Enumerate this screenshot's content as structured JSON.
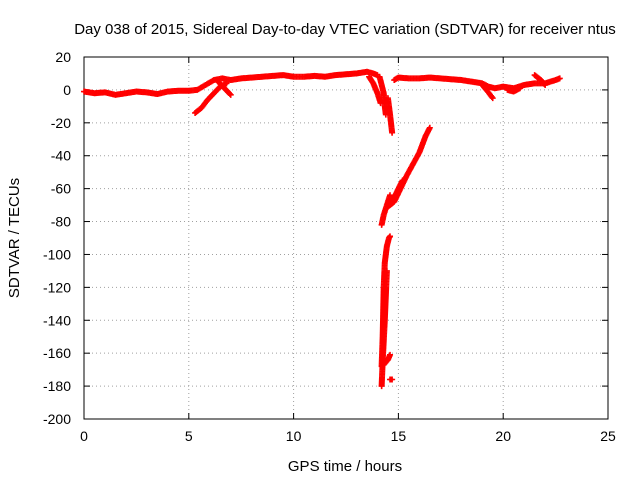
{
  "chart_data": {
    "type": "scatter",
    "title": "Day 038 of 2015, Sidereal Day-to-day VTEC variation (SDTVAR) for receiver ntus",
    "xlabel": "GPS time / hours",
    "ylabel": "SDTVAR / TECUs",
    "xlim": [
      0,
      25
    ],
    "ylim": [
      -200,
      20
    ],
    "xticks": [
      0,
      5,
      10,
      15,
      20,
      25
    ],
    "yticks": [
      -200,
      -180,
      -160,
      -140,
      -120,
      -100,
      -80,
      -60,
      -40,
      -20,
      0,
      20
    ],
    "grid": true,
    "marker": "+",
    "color": "#ff0000",
    "series": [
      {
        "name": "ntus",
        "segments": [
          [
            [
              0.0,
              -1
            ],
            [
              0.5,
              -2
            ],
            [
              1.0,
              -1.5
            ],
            [
              1.5,
              -3
            ],
            [
              2.0,
              -2
            ],
            [
              2.5,
              -1
            ],
            [
              3.0,
              -1.5
            ],
            [
              3.5,
              -2.5
            ],
            [
              4.0,
              -1
            ],
            [
              4.5,
              -0.5
            ],
            [
              5.0,
              -0.5
            ],
            [
              5.4,
              0
            ],
            [
              5.8,
              3
            ],
            [
              6.2,
              6
            ],
            [
              6.6,
              7
            ],
            [
              7.0,
              6
            ],
            [
              7.5,
              7
            ],
            [
              8.0,
              7.5
            ],
            [
              8.5,
              8
            ],
            [
              9.0,
              8.5
            ],
            [
              9.5,
              9
            ],
            [
              10.0,
              8
            ],
            [
              10.5,
              8
            ],
            [
              11.0,
              8.5
            ],
            [
              11.5,
              8
            ],
            [
              12.0,
              9
            ],
            [
              12.5,
              9.5
            ],
            [
              13.0,
              10
            ],
            [
              13.5,
              11
            ],
            [
              13.8,
              10
            ],
            [
              14.0,
              9
            ]
          ],
          [
            [
              5.3,
              -14
            ],
            [
              5.6,
              -11
            ],
            [
              5.9,
              -6
            ],
            [
              6.2,
              -2
            ],
            [
              6.5,
              2
            ],
            [
              6.8,
              4
            ]
          ],
          [
            [
              6.4,
              5
            ],
            [
              6.7,
              1
            ],
            [
              7.0,
              -3
            ]
          ],
          [
            [
              13.6,
              8
            ],
            [
              13.8,
              4
            ],
            [
              14.0,
              -2
            ],
            [
              14.15,
              -8
            ]
          ],
          [
            [
              14.1,
              8
            ],
            [
              14.2,
              3
            ],
            [
              14.3,
              -2
            ],
            [
              14.35,
              -10
            ],
            [
              14.4,
              -15
            ]
          ],
          [
            [
              14.8,
              6
            ],
            [
              15.0,
              7.5
            ],
            [
              15.5,
              7
            ],
            [
              16.0,
              7
            ],
            [
              16.5,
              7.5
            ],
            [
              17.0,
              7
            ],
            [
              17.5,
              6.5
            ],
            [
              18.0,
              6
            ],
            [
              18.5,
              5
            ],
            [
              19.0,
              4
            ],
            [
              19.3,
              2
            ],
            [
              19.6,
              1
            ],
            [
              20.0,
              2
            ],
            [
              20.5,
              1
            ],
            [
              21.0,
              3
            ],
            [
              21.5,
              4
            ],
            [
              22.0,
              4
            ],
            [
              22.5,
              6
            ],
            [
              22.7,
              7
            ]
          ],
          [
            [
              19.0,
              3
            ],
            [
              19.2,
              0
            ],
            [
              19.5,
              -5
            ]
          ],
          [
            [
              20.2,
              0
            ],
            [
              20.5,
              -1
            ],
            [
              20.8,
              1
            ]
          ],
          [
            [
              21.5,
              9
            ],
            [
              21.8,
              6
            ],
            [
              22.0,
              3
            ]
          ],
          [
            [
              14.5,
              -5
            ],
            [
              14.6,
              -15
            ],
            [
              14.7,
              -26
            ]
          ],
          [
            [
              14.2,
              -82
            ],
            [
              14.3,
              -76
            ],
            [
              14.45,
              -70
            ],
            [
              14.6,
              -64
            ]
          ],
          [
            [
              14.2,
              -168
            ],
            [
              14.25,
              -150
            ],
            [
              14.3,
              -120
            ],
            [
              14.35,
              -105
            ],
            [
              14.45,
              -95
            ],
            [
              14.55,
              -90
            ],
            [
              14.6,
              -89
            ]
          ],
          [
            [
              14.2,
              -180
            ],
            [
              14.25,
              -165
            ],
            [
              14.35,
              -140
            ],
            [
              14.45,
              -110
            ]
          ],
          [
            [
              14.3,
              -167
            ],
            [
              14.5,
              -164
            ],
            [
              14.6,
              -161
            ]
          ],
          [
            [
              14.6,
              -176
            ],
            [
              14.7,
              -176
            ]
          ],
          [
            [
              14.5,
              -71
            ],
            [
              14.8,
              -68
            ],
            [
              15.1,
              -60
            ],
            [
              15.4,
              -52
            ],
            [
              15.7,
              -45
            ],
            [
              16.0,
              -38
            ],
            [
              16.3,
              -28
            ],
            [
              16.5,
              -23
            ]
          ],
          [
            [
              14.7,
              -68
            ],
            [
              15.0,
              -60
            ],
            [
              15.2,
              -55
            ]
          ]
        ]
      }
    ]
  }
}
